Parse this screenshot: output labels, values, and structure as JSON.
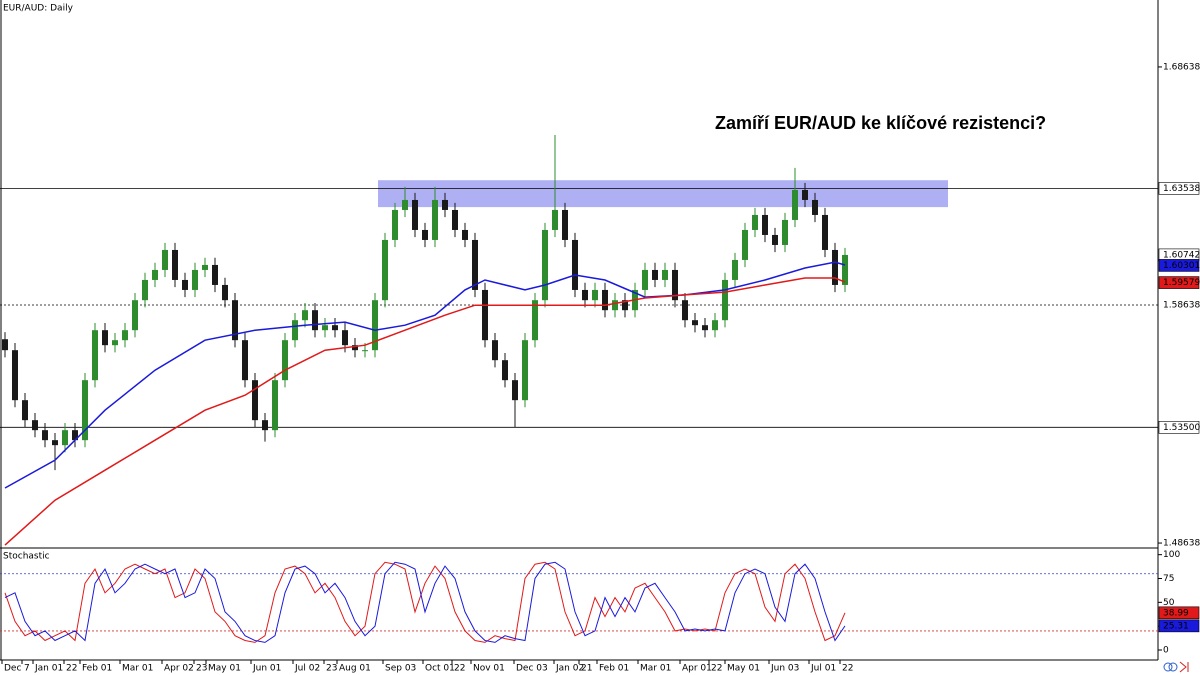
{
  "chart_data": [
    {
      "type": "candlestick",
      "title": "EUR/AUD: Daily",
      "annotation": "Zamíří EUR/AUD ke klíčové rezistenci?",
      "xlim": [
        -0.5,
        115.3
      ],
      "ylim": [
        1.4843,
        1.7145
      ],
      "yticks": [
        1.68638,
        1.48638
      ],
      "levels": [
        {
          "value": 1.63538,
          "style": "solid",
          "boxed": true
        },
        {
          "value": 1.58638,
          "style": "dotted",
          "boxed": false
        },
        {
          "value": 1.535,
          "label": "1.53500",
          "style": "solid",
          "boxed": true
        }
      ],
      "zone": {
        "from": 1.6275,
        "to": 1.6388,
        "x": [
          37.3,
          94.3
        ],
        "color": "#9a9cf0"
      },
      "up_color": "#2e8b2e",
      "down_color": "#1a1a1a",
      "open": [
        1.572,
        1.5674,
        1.5464,
        1.538,
        1.5338,
        1.5296,
        1.5275,
        1.5338,
        1.5296,
        1.5548,
        1.5758,
        1.5695,
        1.5716,
        1.5758,
        1.5884,
        1.5969,
        1.6011,
        1.6095,
        1.5969,
        1.5927,
        1.6011,
        1.6032,
        1.5948,
        1.5884,
        1.5716,
        1.5548,
        1.538,
        1.5338,
        1.5548,
        1.5716,
        1.58,
        1.5842,
        1.5758,
        1.5779,
        1.5758,
        1.5695,
        1.5674,
        1.5674,
        1.5884,
        1.6137,
        1.6263,
        1.6305,
        1.6179,
        1.6137,
        1.6305,
        1.6263,
        1.6179,
        1.6137,
        1.5927,
        1.5716,
        1.5632,
        1.5548,
        1.5464,
        1.5716,
        1.5884,
        1.6179,
        1.6263,
        1.6137,
        1.5927,
        1.5884,
        1.5927,
        1.5842,
        1.5884,
        1.5842,
        1.5927,
        1.6011,
        1.5969,
        1.6011,
        1.5884,
        1.58,
        1.5779,
        1.5758,
        1.58,
        1.5969,
        1.6053,
        1.6179,
        1.6242,
        1.6158,
        1.6116,
        1.6221,
        1.6347,
        1.6305,
        1.6242,
        1.6095,
        1.5948
      ],
      "high": [
        1.575,
        1.5704,
        1.5494,
        1.541,
        1.5368,
        1.5326,
        1.5368,
        1.5368,
        1.5578,
        1.5788,
        1.5788,
        1.5746,
        1.5788,
        1.5914,
        1.5999,
        1.6041,
        1.6125,
        1.6125,
        1.5999,
        1.6041,
        1.6062,
        1.6062,
        1.5978,
        1.5914,
        1.5746,
        1.5578,
        1.541,
        1.5578,
        1.5746,
        1.583,
        1.5872,
        1.5872,
        1.5809,
        1.5809,
        1.5788,
        1.5725,
        1.5704,
        1.5914,
        1.6167,
        1.6293,
        1.636,
        1.6335,
        1.6209,
        1.636,
        1.6335,
        1.6293,
        1.6209,
        1.6167,
        1.5957,
        1.5746,
        1.5662,
        1.5578,
        1.5746,
        1.5914,
        1.6209,
        1.6578,
        1.6293,
        1.6167,
        1.5957,
        1.5957,
        1.5957,
        1.5914,
        1.5914,
        1.5957,
        1.6041,
        1.6041,
        1.6041,
        1.6041,
        1.5914,
        1.583,
        1.5809,
        1.583,
        1.5999,
        1.6083,
        1.6209,
        1.6272,
        1.6272,
        1.6188,
        1.6251,
        1.644,
        1.6377,
        1.6335,
        1.6272,
        1.6125,
        1.6104
      ],
      "low": [
        1.5644,
        1.5434,
        1.535,
        1.5308,
        1.5266,
        1.517,
        1.5245,
        1.5266,
        1.5266,
        1.5518,
        1.5665,
        1.5665,
        1.5686,
        1.5728,
        1.5854,
        1.5939,
        1.5981,
        1.5939,
        1.5897,
        1.5897,
        1.5981,
        1.5918,
        1.5854,
        1.5686,
        1.5518,
        1.535,
        1.529,
        1.5308,
        1.5518,
        1.5686,
        1.577,
        1.5728,
        1.5728,
        1.5728,
        1.5665,
        1.5644,
        1.5644,
        1.5644,
        1.5854,
        1.6107,
        1.6233,
        1.6149,
        1.6107,
        1.6107,
        1.6233,
        1.6149,
        1.6107,
        1.5897,
        1.5686,
        1.5602,
        1.5518,
        1.535,
        1.5434,
        1.5686,
        1.5854,
        1.6149,
        1.6107,
        1.5897,
        1.5854,
        1.5854,
        1.5812,
        1.5812,
        1.5812,
        1.5812,
        1.5897,
        1.5939,
        1.5939,
        1.5854,
        1.577,
        1.5749,
        1.5728,
        1.5728,
        1.577,
        1.5939,
        1.6023,
        1.6149,
        1.6128,
        1.6086,
        1.6086,
        1.6191,
        1.6275,
        1.6212,
        1.6065,
        1.5918,
        1.5918
      ],
      "close": [
        1.5674,
        1.5464,
        1.538,
        1.5338,
        1.5296,
        1.5275,
        1.5338,
        1.5296,
        1.5548,
        1.5758,
        1.5695,
        1.5716,
        1.5758,
        1.5884,
        1.5969,
        1.6011,
        1.6095,
        1.5969,
        1.5927,
        1.6011,
        1.6032,
        1.5948,
        1.5884,
        1.5716,
        1.5548,
        1.538,
        1.5338,
        1.5548,
        1.5716,
        1.58,
        1.5842,
        1.5758,
        1.5779,
        1.5758,
        1.5695,
        1.5674,
        1.5674,
        1.5884,
        1.6137,
        1.6263,
        1.6305,
        1.6179,
        1.6137,
        1.6305,
        1.6263,
        1.6179,
        1.6137,
        1.5927,
        1.5716,
        1.5632,
        1.5548,
        1.5464,
        1.5716,
        1.5884,
        1.6179,
        1.6263,
        1.6137,
        1.5927,
        1.5884,
        1.5927,
        1.5842,
        1.5884,
        1.5842,
        1.5927,
        1.6011,
        1.5969,
        1.6011,
        1.5884,
        1.58,
        1.5779,
        1.5758,
        1.58,
        1.5969,
        1.6053,
        1.6179,
        1.6242,
        1.6158,
        1.6116,
        1.6221,
        1.6347,
        1.6305,
        1.6242,
        1.6095,
        1.5948,
        1.6074
      ],
      "series": [
        {
          "color": "#1a1adc",
          "x": [
            0,
            5,
            10,
            15,
            20,
            25,
            30,
            34,
            37,
            40,
            43,
            46,
            48,
            52,
            54,
            57,
            60,
            64,
            68,
            72,
            76,
            80,
            83,
            84
          ],
          "values": [
            1.5095,
            1.5212,
            1.5422,
            1.559,
            1.5716,
            1.5758,
            1.5779,
            1.5792,
            1.5758,
            1.5779,
            1.5821,
            1.5927,
            1.5969,
            1.5927,
            1.5948,
            1.599,
            1.5969,
            1.5897,
            1.5906,
            1.5927,
            1.5969,
            1.6019,
            1.6044,
            1.6032
          ]
        },
        {
          "color": "#e01a1a",
          "x": [
            0,
            5,
            10,
            15,
            20,
            24,
            28,
            32,
            36,
            40,
            44,
            47,
            52,
            56,
            60,
            64,
            68,
            72,
            76,
            80,
            83,
            84
          ],
          "values": [
            1.4855,
            1.5044,
            1.517,
            1.5296,
            1.5422,
            1.5485,
            1.559,
            1.5674,
            1.5695,
            1.5758,
            1.5821,
            1.5863,
            1.5863,
            1.5863,
            1.5863,
            1.5893,
            1.5906,
            1.5918,
            1.5948,
            1.5977,
            1.5977,
            1.596
          ]
        }
      ],
      "tags": [
        {
          "value": 1.60742,
          "fill": "#ffffff",
          "text_color": "#000000"
        },
        {
          "value": 1.60301,
          "fill": "#1a1adc",
          "text_color": "#ffffff"
        },
        {
          "value": 1.59579,
          "fill": "#e01a1a",
          "text_color": "#ffffff"
        }
      ]
    },
    {
      "type": "line",
      "title": "Stochastic",
      "xlim": [
        -0.5,
        115.3
      ],
      "ylim": [
        -10.5,
        107
      ],
      "yticks": [
        0,
        25,
        50,
        75,
        100
      ],
      "levels": [
        {
          "value": 80,
          "color": "#3040c0"
        },
        {
          "value": 20,
          "color": "#d03030"
        }
      ],
      "xticks": [
        {
          "value": -0.3,
          "label": "Dec"
        },
        {
          "value": 1.7,
          "label": "7"
        },
        {
          "value": 2.8,
          "label": "Jan 01"
        },
        {
          "value": 5.9,
          "label": "22"
        },
        {
          "value": 7.5,
          "label": "Feb 01"
        },
        {
          "value": 11.5,
          "label": "Mar 01"
        },
        {
          "value": 15.7,
          "label": "Apr 02"
        },
        {
          "value": 18.9,
          "label": "23"
        },
        {
          "value": 20.1,
          "label": "May 01"
        },
        {
          "value": 24.6,
          "label": "Jun 01"
        },
        {
          "value": 28.8,
          "label": "Jul 02"
        },
        {
          "value": 31.9,
          "label": "23"
        },
        {
          "value": 33.2,
          "label": "Aug 01"
        },
        {
          "value": 37.8,
          "label": "Sep 03"
        },
        {
          "value": 41.8,
          "label": "Oct 01"
        },
        {
          "value": 44.7,
          "label": "22"
        },
        {
          "value": 46.6,
          "label": "Nov 01"
        },
        {
          "value": 50.9,
          "label": "Dec 03"
        },
        {
          "value": 54.9,
          "label": "Jan 02"
        },
        {
          "value": 57.4,
          "label": "21"
        },
        {
          "value": 59.2,
          "label": "Feb 01"
        },
        {
          "value": 63.3,
          "label": "Mar 01"
        },
        {
          "value": 67.5,
          "label": "Apr 01"
        },
        {
          "value": 70.4,
          "label": "22"
        },
        {
          "value": 72,
          "label": "May 01"
        },
        {
          "value": 76.4,
          "label": "Jun 03"
        },
        {
          "value": 80.4,
          "label": "Jul 01"
        },
        {
          "value": 83.5,
          "label": "22"
        }
      ],
      "series": [
        {
          "color": "#e01a1a",
          "values": [
            60,
            30,
            15,
            20,
            10,
            15,
            20,
            10,
            70,
            85,
            60,
            70,
            85,
            90,
            85,
            80,
            85,
            55,
            60,
            85,
            75,
            40,
            30,
            15,
            10,
            8,
            15,
            60,
            85,
            88,
            80,
            60,
            70,
            55,
            30,
            15,
            25,
            80,
            92,
            90,
            85,
            40,
            70,
            88,
            75,
            40,
            20,
            10,
            8,
            15,
            12,
            10,
            75,
            90,
            92,
            85,
            40,
            15,
            20,
            55,
            35,
            55,
            40,
            65,
            70,
            55,
            40,
            20,
            22,
            20,
            22,
            20,
            60,
            80,
            85,
            80,
            45,
            30,
            80,
            90,
            75,
            40,
            10,
            15,
            38.99
          ]
        },
        {
          "color": "#1a1adc",
          "values": [
            55,
            60,
            30,
            15,
            20,
            10,
            15,
            20,
            10,
            70,
            85,
            60,
            70,
            85,
            90,
            85,
            80,
            85,
            55,
            60,
            85,
            75,
            40,
            30,
            15,
            10,
            8,
            15,
            60,
            85,
            88,
            80,
            60,
            70,
            55,
            30,
            15,
            25,
            80,
            92,
            90,
            85,
            40,
            70,
            88,
            75,
            40,
            20,
            10,
            8,
            15,
            12,
            10,
            75,
            90,
            92,
            85,
            40,
            15,
            20,
            55,
            35,
            55,
            40,
            65,
            70,
            55,
            40,
            20,
            22,
            20,
            22,
            20,
            60,
            80,
            85,
            80,
            45,
            30,
            80,
            90,
            75,
            40,
            10,
            25.31
          ]
        }
      ],
      "tags": [
        {
          "value": 38.99,
          "fill": "#e01a1a",
          "text_color": "#ffffff"
        },
        {
          "value": 25.31,
          "fill": "#1a1adc",
          "text_color": "#ffffff"
        }
      ]
    }
  ]
}
